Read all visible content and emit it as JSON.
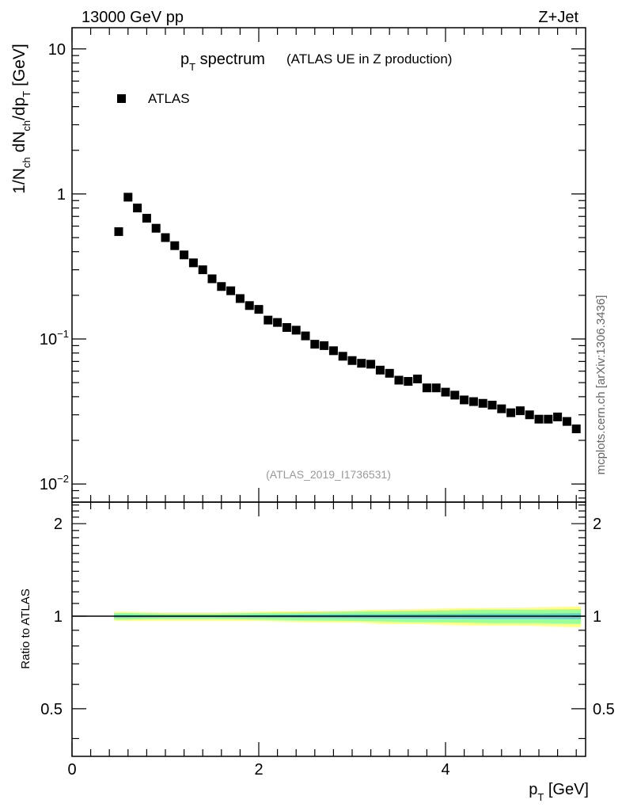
{
  "header": {
    "left": "13000 GeV pp",
    "right": "Z+Jet"
  },
  "title": {
    "main_p": "p",
    "main_sub": "T",
    "main_rest": " spectrum",
    "small": "(ATLAS UE in Z production)"
  },
  "legend": {
    "entry": "ATLAS"
  },
  "analysis_tag": "(ATLAS_2019_I1736531)",
  "side_label": "mcplots.cern.ch [arXiv:1306.3436]",
  "y_axis": {
    "parts": [
      "1/N",
      "ch",
      " dN",
      "ch",
      "/dp",
      "T",
      " [GeV]"
    ]
  },
  "ratio_axis": {
    "label": "Ratio to ATLAS"
  },
  "x_axis": {
    "p": "p",
    "sub": "T",
    "unit": " [GeV]"
  },
  "colors": {
    "marker": "#000000",
    "band_outer": "#ffff80",
    "band_mid": "#99ff99",
    "band_inner": "#66cccc"
  },
  "chart_data": {
    "type": "scatter",
    "x_label": "pT [GeV]",
    "y_label": "1/Nch dNch/dpT [GeV]",
    "x_range": [
      0,
      5.5
    ],
    "y_range": [
      0.0075,
      14
    ],
    "y_scale": "log",
    "x_ticks": [
      0,
      2,
      4
    ],
    "y_ticks": [
      {
        "value": 0.01,
        "base": "10",
        "exp": "−2"
      },
      {
        "value": 0.1,
        "base": "10",
        "exp": "−1"
      },
      {
        "value": 1,
        "base": "1",
        "exp": ""
      },
      {
        "value": 10,
        "base": "10",
        "exp": ""
      }
    ],
    "series": [
      {
        "name": "ATLAS",
        "x": [
          0.5,
          0.6,
          0.7,
          0.8,
          0.9,
          1.0,
          1.1,
          1.2,
          1.3,
          1.4,
          1.5,
          1.6,
          1.7,
          1.8,
          1.9,
          2.0,
          2.1,
          2.2,
          2.3,
          2.4,
          2.5,
          2.6,
          2.7,
          2.8,
          2.9,
          3.0,
          3.1,
          3.2,
          3.3,
          3.4,
          3.5,
          3.6,
          3.7,
          3.8,
          3.9,
          4.0,
          4.1,
          4.2,
          4.3,
          4.4,
          4.5,
          4.6,
          4.7,
          4.8,
          4.9,
          5.0,
          5.1,
          5.2,
          5.3,
          5.4
        ],
        "y": [
          0.55,
          0.95,
          0.8,
          0.68,
          0.58,
          0.5,
          0.44,
          0.38,
          0.335,
          0.3,
          0.26,
          0.23,
          0.215,
          0.19,
          0.17,
          0.16,
          0.135,
          0.13,
          0.12,
          0.115,
          0.105,
          0.092,
          0.09,
          0.083,
          0.076,
          0.071,
          0.068,
          0.067,
          0.061,
          0.058,
          0.052,
          0.051,
          0.053,
          0.046,
          0.046,
          0.043,
          0.041,
          0.038,
          0.037,
          0.036,
          0.035,
          0.033,
          0.031,
          0.032,
          0.03,
          0.028,
          0.028,
          0.029,
          0.027,
          0.024
        ]
      }
    ],
    "ratio": {
      "y_range": [
        0.35,
        2.35
      ],
      "y_scale": "log",
      "y_ticks": [
        0.5,
        1,
        2
      ],
      "line": 1,
      "band_x": [
        0.45,
        0.55,
        1.0,
        1.5,
        2.0,
        2.5,
        3.0,
        3.5,
        4.0,
        4.5,
        5.0,
        5.45
      ],
      "band_outer": [
        0.035,
        0.035,
        0.03,
        0.03,
        0.035,
        0.04,
        0.045,
        0.055,
        0.06,
        0.065,
        0.07,
        0.075
      ],
      "band_mid": [
        0.025,
        0.025,
        0.02,
        0.02,
        0.025,
        0.03,
        0.035,
        0.04,
        0.045,
        0.05,
        0.05,
        0.055
      ],
      "band_inner": [
        0.01,
        0.01,
        0.008,
        0.008,
        0.01,
        0.012,
        0.014,
        0.016,
        0.018,
        0.02,
        0.02,
        0.022
      ]
    }
  }
}
